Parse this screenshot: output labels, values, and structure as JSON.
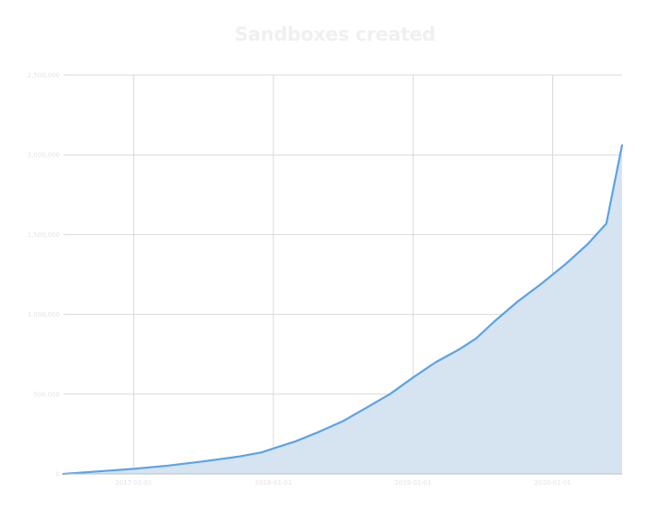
{
  "chart_data": {
    "type": "area",
    "title": "Sandboxes created",
    "xlabel": "",
    "ylabel": "",
    "ylim": [
      0,
      2500000
    ],
    "y_ticks": [
      {
        "value": 0,
        "label": "0"
      },
      {
        "value": 500000,
        "label": "500,000"
      },
      {
        "value": 1000000,
        "label": "1,000,000"
      },
      {
        "value": 1500000,
        "label": "1,500,000"
      },
      {
        "value": 2000000,
        "label": "2,000,000"
      },
      {
        "value": 2500000,
        "label": "2,500,000"
      }
    ],
    "x_range": [
      "2016-07-01",
      "2020-06-30"
    ],
    "x_ticks": [
      {
        "value": "2017-01-01",
        "label": "2017-01-01"
      },
      {
        "value": "2018-01-01",
        "label": "2018-01-01"
      },
      {
        "value": "2019-01-01",
        "label": "2019-01-01"
      },
      {
        "value": "2020-01-01",
        "label": "2020-01-01"
      }
    ],
    "grid": true,
    "colors": {
      "line": "#5ba3e6",
      "fill": "#d6e3f1",
      "grid": "#d8d8d8",
      "axis": "#bcbcbc"
    },
    "series": [
      {
        "points": [
          {
            "x": "2016-07-01",
            "y": 0
          },
          {
            "x": "2016-10-01",
            "y": 16000
          },
          {
            "x": "2017-01-01",
            "y": 32000
          },
          {
            "x": "2017-04-01",
            "y": 52000
          },
          {
            "x": "2017-07-01",
            "y": 78000
          },
          {
            "x": "2017-10-01",
            "y": 108000
          },
          {
            "x": "2017-12-01",
            "y": 135000
          },
          {
            "x": "2018-01-01",
            "y": 160000
          },
          {
            "x": "2018-03-01",
            "y": 205000
          },
          {
            "x": "2018-05-01",
            "y": 265000
          },
          {
            "x": "2018-07-01",
            "y": 330000
          },
          {
            "x": "2018-09-01",
            "y": 415000
          },
          {
            "x": "2018-11-01",
            "y": 500000
          },
          {
            "x": "2019-01-01",
            "y": 605000
          },
          {
            "x": "2019-03-01",
            "y": 700000
          },
          {
            "x": "2019-05-01",
            "y": 780000
          },
          {
            "x": "2019-06-15",
            "y": 850000
          },
          {
            "x": "2019-08-01",
            "y": 955000
          },
          {
            "x": "2019-10-01",
            "y": 1080000
          },
          {
            "x": "2019-12-01",
            "y": 1190000
          },
          {
            "x": "2020-02-01",
            "y": 1310000
          },
          {
            "x": "2020-04-01",
            "y": 1440000
          },
          {
            "x": "2020-05-20",
            "y": 1570000
          },
          {
            "x": "2020-06-30",
            "y": 2060000
          }
        ]
      }
    ]
  }
}
